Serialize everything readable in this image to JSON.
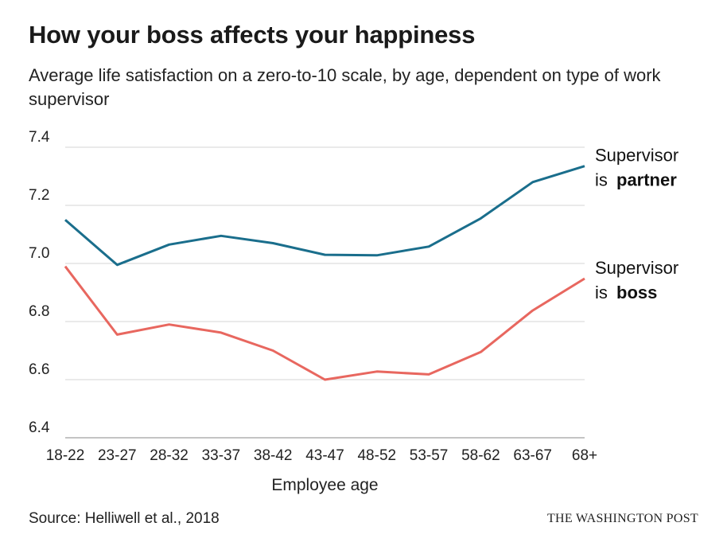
{
  "header": {
    "title": "How your boss affects your happiness",
    "subtitle": "Average life satisfaction on a zero-to-10 scale, by age, dependent on type of work supervisor"
  },
  "footer": {
    "source": "Source: Helliwell et al., 2018",
    "brand": "THE WASHINGTON POST"
  },
  "chart_data": {
    "type": "line",
    "title": "How your boss affects your happiness",
    "subtitle": "Average life satisfaction on a zero-to-10 scale, by age, dependent on type of work supervisor",
    "xlabel": "Employee age",
    "ylabel": "",
    "categories": [
      "18-22",
      "23-27",
      "28-32",
      "33-37",
      "38-42",
      "43-47",
      "48-52",
      "53-57",
      "58-62",
      "63-67",
      "68+"
    ],
    "ylim": [
      6.4,
      7.4
    ],
    "yticks": [
      "7.4",
      "7.2",
      "7.0",
      "6.8",
      "6.6",
      "6.4"
    ],
    "grid": true,
    "series": [
      {
        "name": "Supervisor is partner",
        "label_line1": "Supervisor",
        "label_line2_prefix": "is ",
        "label_line2_bold": "partner",
        "color": "#1a6e8c",
        "values": [
          7.15,
          6.995,
          7.065,
          7.095,
          7.07,
          7.03,
          7.028,
          7.058,
          7.155,
          7.28,
          7.335
        ]
      },
      {
        "name": "Supervisor is boss",
        "label_line1": "Supervisor",
        "label_line2_prefix": "is ",
        "label_line2_bold": "boss",
        "color": "#e8675f",
        "values": [
          6.99,
          6.755,
          6.79,
          6.762,
          6.7,
          6.6,
          6.628,
          6.618,
          6.695,
          6.838,
          6.948
        ]
      }
    ]
  }
}
